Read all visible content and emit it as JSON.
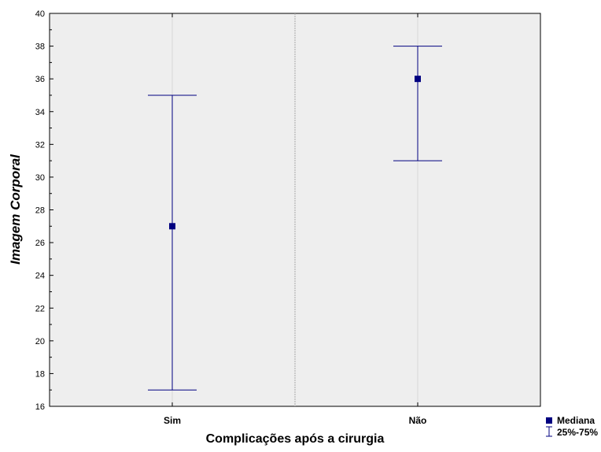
{
  "chart_data": {
    "type": "box",
    "xlabel": "Complicações após a cirurgia",
    "ylabel": "Imagem Corporal",
    "ylim": [
      16,
      40
    ],
    "yticks": [
      16,
      18,
      20,
      22,
      24,
      26,
      28,
      30,
      32,
      34,
      36,
      38,
      40
    ],
    "categories": [
      "Sim",
      "Não"
    ],
    "median": [
      27,
      36
    ],
    "q25": [
      17,
      31
    ],
    "q75": [
      35,
      38
    ],
    "legend": {
      "position": "bottom-right",
      "median_label": "Mediana",
      "range_label": "25%-75%"
    },
    "grid": true,
    "colors": {
      "series": "#000080",
      "plot_background": "#eeeeee",
      "grid": "#d8d8d8"
    }
  }
}
